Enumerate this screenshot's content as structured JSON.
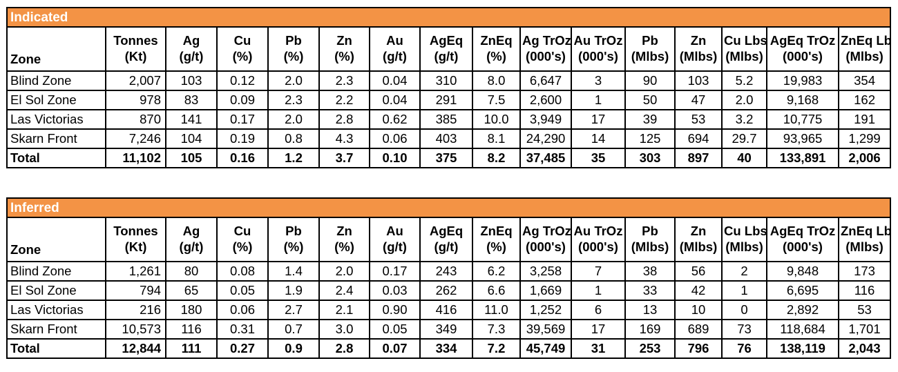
{
  "columns": [
    {
      "l1": "",
      "l2": "Zone"
    },
    {
      "l1": "Tonnes",
      "l2": "(Kt)"
    },
    {
      "l1": "Ag",
      "l2": "(g/t)"
    },
    {
      "l1": "Cu",
      "l2": "(%)"
    },
    {
      "l1": "Pb",
      "l2": "(%)"
    },
    {
      "l1": "Zn",
      "l2": "(%)"
    },
    {
      "l1": "Au",
      "l2": "(g/t)"
    },
    {
      "l1": "AgEq",
      "l2": "(g/t)"
    },
    {
      "l1": "ZnEq",
      "l2": "(%)"
    },
    {
      "l1": "Ag TrOz",
      "l2": "(000's)"
    },
    {
      "l1": "Au TrOz",
      "l2": "(000's)"
    },
    {
      "l1": "Pb",
      "l2": "(Mlbs)"
    },
    {
      "l1": "Zn",
      "l2": "(Mlbs)"
    },
    {
      "l1": "Cu Lbs",
      "l2": "(Mlbs)"
    },
    {
      "l1": "AgEq TrOz",
      "l2": "(000's)"
    },
    {
      "l1": "ZnEq Lbs",
      "l2": "(Mlbs)"
    }
  ],
  "tables": [
    {
      "title": "Indicated",
      "rows": [
        [
          "Blind Zone",
          "2,007",
          "103",
          "0.12",
          "2.0",
          "2.3",
          "0.04",
          "310",
          "8.0",
          "6,647",
          "3",
          "90",
          "103",
          "5.2",
          "19,983",
          "354"
        ],
        [
          "El Sol Zone",
          "978",
          "83",
          "0.09",
          "2.3",
          "2.2",
          "0.04",
          "291",
          "7.5",
          "2,600",
          "1",
          "50",
          "47",
          "2.0",
          "9,168",
          "162"
        ],
        [
          "Las Victorias",
          "870",
          "141",
          "0.17",
          "2.0",
          "2.8",
          "0.62",
          "385",
          "10.0",
          "3,949",
          "17",
          "39",
          "53",
          "3.2",
          "10,775",
          "191"
        ],
        [
          "Skarn Front",
          "7,246",
          "104",
          "0.19",
          "0.8",
          "4.3",
          "0.06",
          "403",
          "8.1",
          "24,290",
          "14",
          "125",
          "694",
          "29.7",
          "93,965",
          "1,299"
        ]
      ],
      "total": [
        "Total",
        "11,102",
        "105",
        "0.16",
        "1.2",
        "3.7",
        "0.10",
        "375",
        "8.2",
        "37,485",
        "35",
        "303",
        "897",
        "40",
        "133,891",
        "2,006"
      ]
    },
    {
      "title": "Inferred",
      "rows": [
        [
          "Blind Zone",
          "1,261",
          "80",
          "0.08",
          "1.4",
          "2.0",
          "0.17",
          "243",
          "6.2",
          "3,258",
          "7",
          "38",
          "56",
          "2",
          "9,848",
          "173"
        ],
        [
          "El Sol Zone",
          "794",
          "65",
          "0.05",
          "1.9",
          "2.4",
          "0.03",
          "262",
          "6.6",
          "1,669",
          "1",
          "33",
          "42",
          "1",
          "6,695",
          "116"
        ],
        [
          "Las Victorias",
          "216",
          "180",
          "0.06",
          "2.7",
          "2.1",
          "0.90",
          "416",
          "11.0",
          "1,252",
          "6",
          "13",
          "10",
          "0",
          "2,892",
          "53"
        ],
        [
          "Skarn Front",
          "10,573",
          "116",
          "0.31",
          "0.7",
          "3.0",
          "0.05",
          "349",
          "7.3",
          "39,569",
          "17",
          "169",
          "689",
          "73",
          "118,684",
          "1,701"
        ]
      ],
      "total": [
        "Total",
        "12,844",
        "111",
        "0.27",
        "0.9",
        "2.8",
        "0.07",
        "334",
        "7.2",
        "45,749",
        "31",
        "253",
        "796",
        "76",
        "138,119",
        "2,043"
      ]
    }
  ],
  "colors": {
    "header_bg": "#f39345",
    "header_text": "#ffffff",
    "border": "#000000"
  }
}
